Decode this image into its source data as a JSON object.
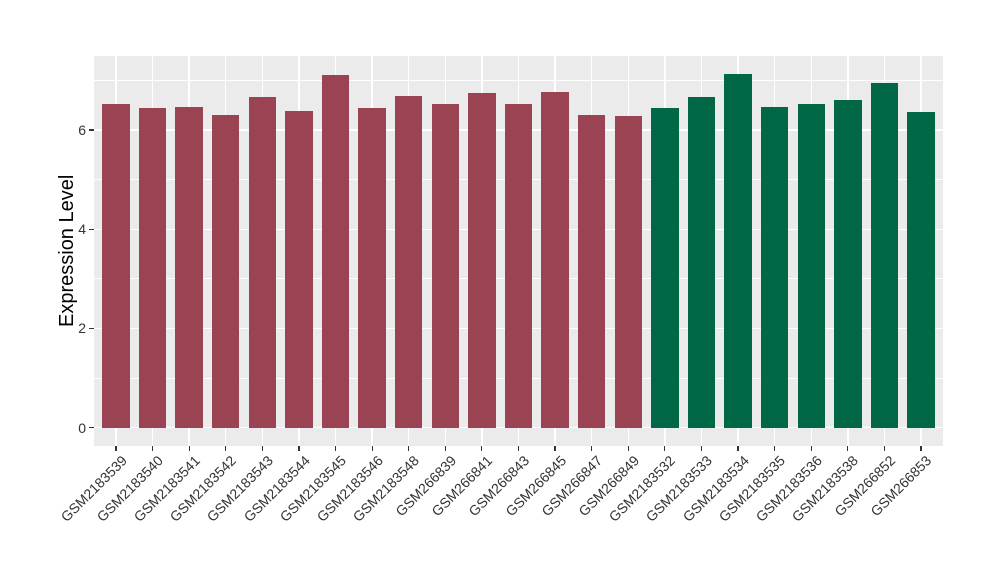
{
  "figure": {
    "background": "#FFFFFF",
    "panel_background": "#EBEBEB",
    "gridline_color": "#FFFFFF",
    "tick_color": "#333333",
    "axis_text_color": "#333333",
    "axis_title_color": "#000000"
  },
  "chart_data": {
    "type": "bar",
    "title": "",
    "xlabel": "",
    "ylabel": "Expression Level",
    "ylim": [
      -0.37,
      7.52
    ],
    "yticks": [
      0,
      2,
      4,
      6
    ],
    "minor_gridlines": [
      1,
      3,
      5,
      7
    ],
    "grid": true,
    "legend_position": "none",
    "categories": [
      "GSM2183539",
      "GSM2183540",
      "GSM2183541",
      "GSM2183542",
      "GSM2183543",
      "GSM2183544",
      "GSM2183545",
      "GSM2183546",
      "GSM2183548",
      "GSM266839",
      "GSM266841",
      "GSM266843",
      "GSM266845",
      "GSM266847",
      "GSM266849",
      "GSM2183532",
      "GSM2183533",
      "GSM2183534",
      "GSM2183535",
      "GSM2183536",
      "GSM2183538",
      "GSM266852",
      "GSM266853"
    ],
    "values": [
      6.52,
      6.44,
      6.46,
      6.3,
      6.66,
      6.38,
      7.11,
      6.44,
      6.68,
      6.53,
      6.75,
      6.52,
      6.77,
      6.3,
      6.28,
      6.44,
      6.67,
      7.14,
      6.46,
      6.52,
      6.6,
      6.94,
      6.36
    ],
    "bar_groups": [
      "group1",
      "group1",
      "group1",
      "group1",
      "group1",
      "group1",
      "group1",
      "group1",
      "group1",
      "group1",
      "group1",
      "group1",
      "group1",
      "group1",
      "group1",
      "group2",
      "group2",
      "group2",
      "group2",
      "group2",
      "group2",
      "group2",
      "group2"
    ],
    "group_colors": {
      "group1": "#9A4352",
      "group2": "#006747"
    }
  }
}
